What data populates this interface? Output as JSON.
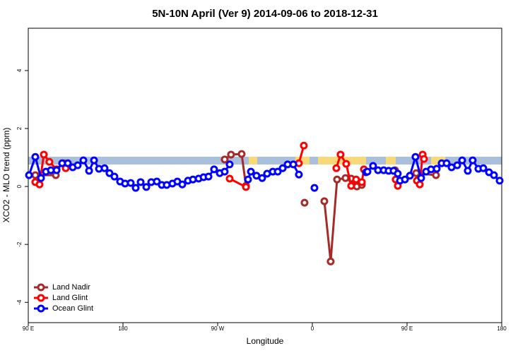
{
  "chart_data": {
    "type": "line",
    "title": "5N-10N April (Ver 9)   2014-09-06 to 2018-12-31",
    "x_label": "Longitude",
    "y_label": "XCO2 - MLO trend (ppm)",
    "xlim": [
      90,
      540
    ],
    "ylim": [
      -4.7,
      5.46
    ],
    "xticks": [
      {
        "value": 90,
        "label": "90 E"
      },
      180,
      {
        "value": 270,
        "label": "90 W"
      },
      {
        "value": 360,
        "label": "0"
      },
      {
        "value": 450,
        "label": "90 E"
      },
      {
        "value": 540,
        "label": "180"
      }
    ],
    "yticks": [
      4,
      2,
      0,
      -2,
      -4
    ],
    "legend": "bottom-left",
    "series": [
      {
        "name": "Land Nadir",
        "color": "#a52a2a",
        "x": [
          96.7,
          116.2,
          null,
          276.7,
          282.7,
          292.8,
          296.9,
          null,
          352.6,
          null,
          371.4,
          377.4,
          383.5,
          391.5,
          396.9,
          402.3,
          407,
          null,
          438.6,
          null,
          458.7,
          477.5
        ],
        "values": [
          0.39,
          0.39,
          null,
          0.93,
          1.1,
          1.12,
          0.02,
          null,
          -0.56,
          null,
          -0.51,
          -2.59,
          0.24,
          0.29,
          0.27,
          0,
          0.05,
          null,
          0.56,
          null,
          0.46,
          0.39
        ]
      },
      {
        "name": "Land Glint",
        "color": "#ff0000",
        "x": [
          96.7,
          100.7,
          104.8,
          110.1,
          116.9,
          123.6,
          125.6,
          null,
          281.4,
          296.9,
          null,
          347.2,
          351.9,
          null,
          382.8,
          386.8,
          392.2,
          396.9,
          401.6,
          407,
          409,
          null,
          439.2,
          441.2,
          null,
          459.4,
          462.1,
          464.8,
          466.1
        ],
        "values": [
          0.15,
          0.07,
          1.1,
          0.85,
          0.59,
          0.8,
          0.63,
          null,
          0.27,
          -0.02,
          null,
          0.8,
          1.41,
          null,
          0.63,
          1.1,
          0.78,
          0.02,
          0.24,
          0.15,
          0.59,
          null,
          0.24,
          0.02,
          null,
          0.2,
          0.07,
          1.1,
          0.95
        ]
      },
      {
        "name": "Ocean Glint",
        "color": "#0000ff",
        "x": [
          90.7,
          96.7,
          102.1,
          106.8,
          111.5,
          116.9,
          122.2,
          127.6,
          132.3,
          137,
          142.4,
          147.8,
          152.5,
          157.2,
          162.5,
          167.2,
          171.9,
          177.3,
          182,
          187.4,
          192.1,
          196.8,
          202.2,
          206.9,
          212.2,
          216.9,
          221.6,
          227,
          231.7,
          236.4,
          241.8,
          246.5,
          251.9,
          256.6,
          261.3,
          266.6,
          272,
          276.7,
          281.4,
          null,
          298.9,
          301.6,
          306.9,
          312.3,
          317,
          322.4,
          327.1,
          331.8,
          336.5,
          341.9,
          347.2,
          null,
          362,
          null,
          411,
          412.4,
          417.7,
          422.4,
          427.8,
          432.5,
          437.2,
          441.2,
          443.3,
          448,
          452.7,
          458,
          463.4,
          468.1,
          472.8,
          478.2,
          482.9,
          487.6,
          492.3,
          497.7,
          502.4,
          507.7,
          512.4,
          517.8,
          522.5,
          527.9,
          532.6,
          538
        ],
        "values": [
          0.39,
          1.02,
          0.29,
          0.51,
          0.56,
          0.56,
          0.8,
          0.8,
          0.66,
          0.73,
          0.9,
          0.54,
          0.9,
          0.61,
          0.63,
          0.46,
          0.34,
          0.17,
          0.1,
          0.12,
          -0.05,
          0.15,
          -0.02,
          0.15,
          0.17,
          0.05,
          0.05,
          0.1,
          0.17,
          0.07,
          0.2,
          0.24,
          0.27,
          0.32,
          0.34,
          0.59,
          0.46,
          0.51,
          0.76,
          null,
          0.24,
          0.51,
          0.37,
          0.29,
          0.44,
          0.51,
          0.51,
          0.63,
          0.76,
          0.76,
          0.41,
          null,
          -0.05,
          null,
          0.49,
          0.51,
          0.71,
          0.56,
          0.56,
          0.54,
          0.54,
          0.44,
          0.2,
          0.24,
          0.37,
          1.02,
          0.29,
          0.51,
          0.59,
          0.61,
          0.8,
          0.8,
          0.66,
          0.73,
          0.9,
          0.54,
          0.9,
          0.61,
          0.63,
          0.49,
          0.39,
          0.2
        ]
      }
    ]
  }
}
